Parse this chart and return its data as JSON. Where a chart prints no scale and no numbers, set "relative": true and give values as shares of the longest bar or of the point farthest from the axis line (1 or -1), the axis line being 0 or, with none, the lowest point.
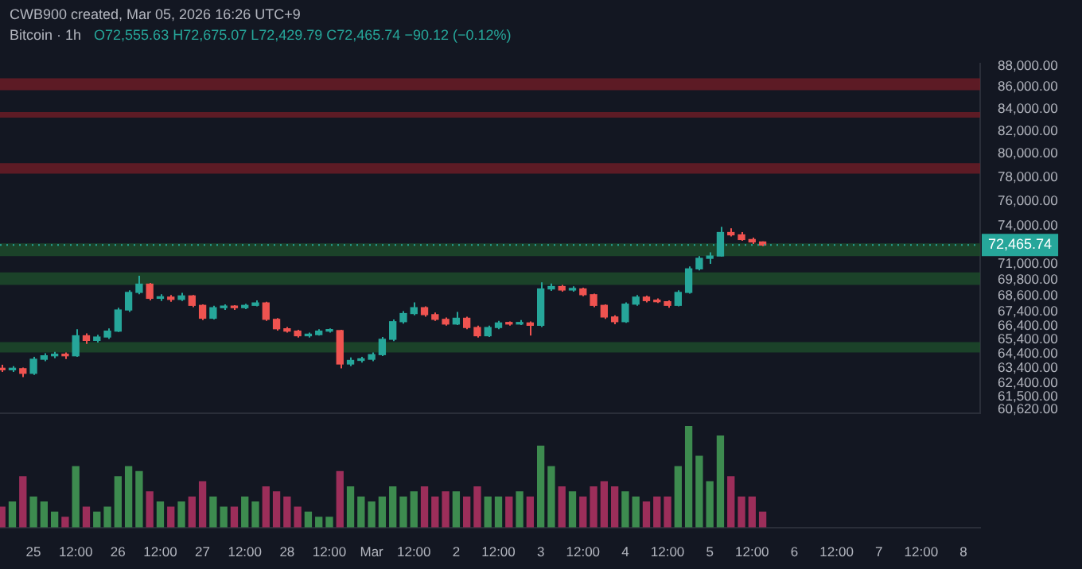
{
  "chart_data": [
    {
      "type": "candlestick",
      "title": "Bitcoin · 1h",
      "annotations": [
        "CWB900 created, Mar 05, 2026 16:26 UTC+9",
        "O72,555.63 H72,675.07 L72,429.79 C72,465.74 −90.12 (−0.12%)"
      ],
      "x": [
        "2026-02-24T15:00",
        "2026-02-24T18:00",
        "2026-02-24T21:00",
        "2026-02-25T00:00",
        "2026-02-25T03:00",
        "2026-02-25T06:00",
        "2026-02-25T09:00",
        "2026-02-25T12:00",
        "2026-02-25T15:00",
        "2026-02-25T18:00",
        "2026-02-25T21:00",
        "2026-02-26T00:00",
        "2026-02-26T03:00",
        "2026-02-26T06:00",
        "2026-02-26T09:00",
        "2026-02-26T12:00",
        "2026-02-26T15:00",
        "2026-02-26T18:00",
        "2026-02-26T21:00",
        "2026-02-27T00:00",
        "2026-02-27T03:00",
        "2026-02-27T06:00",
        "2026-02-27T09:00",
        "2026-02-27T12:00",
        "2026-02-27T15:00",
        "2026-02-27T18:00",
        "2026-02-27T21:00",
        "2026-02-28T00:00",
        "2026-02-28T03:00",
        "2026-02-28T06:00",
        "2026-02-28T09:00",
        "2026-02-28T12:00",
        "2026-02-28T15:00",
        "2026-02-28T18:00",
        "2026-02-28T21:00",
        "2026-03-01T00:00",
        "2026-03-01T03:00",
        "2026-03-01T06:00",
        "2026-03-01T09:00",
        "2026-03-01T12:00",
        "2026-03-01T15:00",
        "2026-03-01T18:00",
        "2026-03-01T21:00",
        "2026-03-02T00:00",
        "2026-03-02T03:00",
        "2026-03-02T06:00",
        "2026-03-02T09:00",
        "2026-03-02T12:00",
        "2026-03-02T15:00",
        "2026-03-02T18:00",
        "2026-03-02T21:00",
        "2026-03-03T00:00",
        "2026-03-03T03:00",
        "2026-03-03T06:00",
        "2026-03-03T09:00",
        "2026-03-03T12:00",
        "2026-03-03T15:00",
        "2026-03-03T18:00",
        "2026-03-03T21:00",
        "2026-03-04T00:00",
        "2026-03-04T03:00",
        "2026-03-04T06:00",
        "2026-03-04T09:00",
        "2026-03-04T12:00",
        "2026-03-04T15:00",
        "2026-03-04T18:00",
        "2026-03-04T21:00",
        "2026-03-05T00:00",
        "2026-03-05T03:00",
        "2026-03-05T06:00",
        "2026-03-05T09:00",
        "2026-03-05T12:00",
        "2026-03-05T15:00"
      ],
      "ohlc": [
        [
          63400,
          63650,
          63150,
          63300
        ],
        [
          63300,
          63550,
          63150,
          63380
        ],
        [
          63380,
          63450,
          62800,
          63060
        ],
        [
          63060,
          64200,
          62950,
          64030
        ],
        [
          64030,
          64450,
          63900,
          64270
        ],
        [
          64270,
          64550,
          64100,
          64350
        ],
        [
          64350,
          64500,
          64050,
          64270
        ],
        [
          64270,
          66150,
          64200,
          65680
        ],
        [
          65680,
          65850,
          65100,
          65350
        ],
        [
          65350,
          65750,
          65200,
          65590
        ],
        [
          65590,
          66200,
          65450,
          66010
        ],
        [
          66010,
          67700,
          65950,
          67540
        ],
        [
          67540,
          69000,
          67400,
          68840
        ],
        [
          68840,
          70100,
          68700,
          69460
        ],
        [
          69460,
          69550,
          68250,
          68400
        ],
        [
          68400,
          68700,
          68200,
          68490
        ],
        [
          68490,
          68650,
          68150,
          68320
        ],
        [
          68320,
          68800,
          68200,
          68580
        ],
        [
          68580,
          68650,
          67750,
          67880
        ],
        [
          67880,
          67950,
          66800,
          66940
        ],
        [
          66940,
          67850,
          66850,
          67710
        ],
        [
          67710,
          67950,
          67550,
          67800
        ],
        [
          67800,
          67900,
          67550,
          67710
        ],
        [
          67710,
          68000,
          67600,
          67880
        ],
        [
          67880,
          68250,
          67800,
          68060
        ],
        [
          68060,
          68150,
          66750,
          66860
        ],
        [
          66860,
          66950,
          66050,
          66180
        ],
        [
          66180,
          66300,
          65900,
          66010
        ],
        [
          66010,
          66100,
          65550,
          65680
        ],
        [
          65680,
          65900,
          65550,
          65760
        ],
        [
          65760,
          66150,
          65700,
          66010
        ],
        [
          66010,
          66200,
          65900,
          66050
        ],
        [
          66050,
          66100,
          63400,
          63700
        ],
        [
          63700,
          64150,
          63550,
          63950
        ],
        [
          63950,
          64200,
          63800,
          64030
        ],
        [
          64030,
          64500,
          63900,
          64350
        ],
        [
          64350,
          65600,
          64250,
          65430
        ],
        [
          65430,
          66850,
          65300,
          66690
        ],
        [
          66690,
          67450,
          66550,
          67280
        ],
        [
          67280,
          68100,
          67150,
          67710
        ],
        [
          67710,
          67800,
          67050,
          67200
        ],
        [
          67200,
          67350,
          66750,
          66860
        ],
        [
          66860,
          67000,
          66400,
          66520
        ],
        [
          66520,
          67400,
          66450,
          66940
        ],
        [
          66940,
          67050,
          66150,
          66270
        ],
        [
          66270,
          66400,
          65550,
          65680
        ],
        [
          65680,
          66400,
          65600,
          66270
        ],
        [
          66270,
          66750,
          66150,
          66600
        ],
        [
          66600,
          66700,
          66400,
          66520
        ],
        [
          66520,
          66800,
          66450,
          66600
        ],
        [
          66600,
          66700,
          65700,
          66430
        ],
        [
          66430,
          69600,
          66300,
          69100
        ],
        [
          69100,
          69500,
          68950,
          69280
        ],
        [
          69280,
          69400,
          68900,
          69020
        ],
        [
          69020,
          69300,
          68900,
          69100
        ],
        [
          69100,
          69200,
          68550,
          68670
        ],
        [
          68670,
          68750,
          67750,
          67880
        ],
        [
          67880,
          67950,
          66900,
          67030
        ],
        [
          67030,
          67150,
          66500,
          66690
        ],
        [
          66690,
          68100,
          66600,
          67970
        ],
        [
          67970,
          68650,
          67850,
          68490
        ],
        [
          68490,
          68600,
          68100,
          68230
        ],
        [
          68230,
          68400,
          68050,
          68150
        ],
        [
          68150,
          68250,
          67700,
          67880
        ],
        [
          67880,
          69000,
          67800,
          68840
        ],
        [
          68840,
          70800,
          68750,
          70620
        ],
        [
          70620,
          71600,
          70500,
          71430
        ],
        [
          71430,
          71900,
          71000,
          71610
        ],
        [
          71610,
          73900,
          71550,
          73460
        ],
        [
          73460,
          73800,
          73150,
          73270
        ],
        [
          73270,
          73500,
          72800,
          72900
        ],
        [
          72900,
          73050,
          72550,
          72710
        ],
        [
          72710,
          72750,
          72380,
          72465.74
        ]
      ],
      "colors": [
        "#ef5350",
        "#26a69a",
        "#ef5350",
        "#26a69a",
        "#26a69a",
        "#26a69a",
        "#ef5350",
        "#26a69a",
        "#ef5350",
        "#26a69a",
        "#26a69a",
        "#26a69a",
        "#26a69a",
        "#26a69a",
        "#ef5350",
        "#26a69a",
        "#ef5350",
        "#26a69a",
        "#ef5350",
        "#ef5350",
        "#26a69a",
        "#26a69a",
        "#ef5350",
        "#26a69a",
        "#26a69a",
        "#ef5350",
        "#ef5350",
        "#ef5350",
        "#ef5350",
        "#26a69a",
        "#26a69a",
        "#26a69a",
        "#ef5350",
        "#26a69a",
        "#26a69a",
        "#26a69a",
        "#26a69a",
        "#26a69a",
        "#26a69a",
        "#26a69a",
        "#ef5350",
        "#ef5350",
        "#ef5350",
        "#26a69a",
        "#ef5350",
        "#ef5350",
        "#26a69a",
        "#26a69a",
        "#ef5350",
        "#26a69a",
        "#ef5350",
        "#26a69a",
        "#26a69a",
        "#ef5350",
        "#26a69a",
        "#ef5350",
        "#ef5350",
        "#ef5350",
        "#ef5350",
        "#26a69a",
        "#26a69a",
        "#ef5350",
        "#ef5350",
        "#ef5350",
        "#26a69a",
        "#26a69a",
        "#26a69a",
        "#26a69a",
        "#26a69a",
        "#ef5350",
        "#ef5350",
        "#ef5350",
        "#ef5350"
      ],
      "log": "y",
      "xlim": [
        "2026-02-24T14:30",
        "2026-03-08T04:45"
      ],
      "ylim": [
        60400,
        88200
      ],
      "yticks": [
        {
          "value": 88000,
          "label": "88,000.00"
        },
        {
          "value": 86000,
          "label": "86,000.00"
        },
        {
          "value": 84000,
          "label": "84,000.00"
        },
        {
          "value": 82000,
          "label": "82,000.00"
        },
        {
          "value": 80000,
          "label": "80,000.00"
        },
        {
          "value": 78000,
          "label": "78,000.00"
        },
        {
          "value": 76000,
          "label": "76,000.00"
        },
        {
          "value": 74000,
          "label": "74,000.00"
        },
        {
          "value": 71000,
          "label": "71,000.00"
        },
        {
          "value": 69800,
          "label": "69,800.00"
        },
        {
          "value": 68600,
          "label": "68,600.00"
        },
        {
          "value": 67400,
          "label": "67,400.00"
        },
        {
          "value": 66400,
          "label": "66,400.00"
        },
        {
          "value": 65400,
          "label": "65,400.00"
        },
        {
          "value": 64400,
          "label": "64,400.00"
        },
        {
          "value": 63400,
          "label": "63,400.00"
        },
        {
          "value": 62400,
          "label": "62,400.00"
        },
        {
          "value": 61500,
          "label": "61,500.00"
        },
        {
          "value": 60620,
          "label": "60,620.00"
        }
      ],
      "tick_labels": "y",
      "ref_lines": [
        {
          "axis": "y",
          "value": 72465.74,
          "label": "72,465.74",
          "color": "#26a69a",
          "line_style": "dotted"
        }
      ],
      "bands": [
        {
          "axis": "y",
          "from": 85700,
          "to": 86830,
          "color": "#6b1c26"
        },
        {
          "axis": "y",
          "from": 83200,
          "to": 83700,
          "color": "#6b1c26"
        },
        {
          "axis": "y",
          "from": 78300,
          "to": 79200,
          "color": "#6b1c26"
        },
        {
          "axis": "y",
          "from": 71600,
          "to": 72600,
          "color": "#1d4a2a"
        },
        {
          "axis": "y",
          "from": 69400,
          "to": 70350,
          "color": "#1d4a2a"
        },
        {
          "axis": "y",
          "from": 64500,
          "to": 65230,
          "color": "#1d4a2a"
        }
      ]
    },
    {
      "type": "bar",
      "relative": true,
      "x": [
        "2026-02-24T15:00",
        "2026-02-24T18:00",
        "2026-02-24T21:00",
        "2026-02-25T00:00",
        "2026-02-25T03:00",
        "2026-02-25T06:00",
        "2026-02-25T09:00",
        "2026-02-25T12:00",
        "2026-02-25T15:00",
        "2026-02-25T18:00",
        "2026-02-25T21:00",
        "2026-02-26T00:00",
        "2026-02-26T03:00",
        "2026-02-26T06:00",
        "2026-02-26T09:00",
        "2026-02-26T12:00",
        "2026-02-26T15:00",
        "2026-02-26T18:00",
        "2026-02-26T21:00",
        "2026-02-27T00:00",
        "2026-02-27T03:00",
        "2026-02-27T06:00",
        "2026-02-27T09:00",
        "2026-02-27T12:00",
        "2026-02-27T15:00",
        "2026-02-27T18:00",
        "2026-02-27T21:00",
        "2026-02-28T00:00",
        "2026-02-28T03:00",
        "2026-02-28T06:00",
        "2026-02-28T09:00",
        "2026-02-28T12:00",
        "2026-02-28T15:00",
        "2026-02-28T18:00",
        "2026-02-28T21:00",
        "2026-03-01T00:00",
        "2026-03-01T03:00",
        "2026-03-01T06:00",
        "2026-03-01T09:00",
        "2026-03-01T12:00",
        "2026-03-01T15:00",
        "2026-03-01T18:00",
        "2026-03-01T21:00",
        "2026-03-02T00:00",
        "2026-03-02T03:00",
        "2026-03-02T06:00",
        "2026-03-02T09:00",
        "2026-03-02T12:00",
        "2026-03-02T15:00",
        "2026-03-02T18:00",
        "2026-03-02T21:00",
        "2026-03-03T00:00",
        "2026-03-03T03:00",
        "2026-03-03T06:00",
        "2026-03-03T09:00",
        "2026-03-03T12:00",
        "2026-03-03T15:00",
        "2026-03-03T18:00",
        "2026-03-03T21:00",
        "2026-03-04T00:00",
        "2026-03-04T03:00",
        "2026-03-04T06:00",
        "2026-03-04T09:00",
        "2026-03-04T12:00",
        "2026-03-04T15:00",
        "2026-03-04T18:00",
        "2026-03-04T21:00",
        "2026-03-05T00:00",
        "2026-03-05T03:00",
        "2026-03-05T06:00",
        "2026-03-05T09:00",
        "2026-03-05T12:00",
        "2026-03-05T15:00"
      ],
      "values": [
        0.2,
        0.25,
        0.5,
        0.3,
        0.25,
        0.15,
        0.1,
        0.6,
        0.2,
        0.15,
        0.2,
        0.5,
        0.6,
        0.55,
        0.35,
        0.25,
        0.2,
        0.25,
        0.3,
        0.45,
        0.3,
        0.2,
        0.2,
        0.3,
        0.25,
        0.4,
        0.35,
        0.3,
        0.2,
        0.15,
        0.1,
        0.1,
        0.55,
        0.4,
        0.3,
        0.25,
        0.3,
        0.4,
        0.3,
        0.35,
        0.4,
        0.3,
        0.35,
        0.35,
        0.3,
        0.4,
        0.3,
        0.3,
        0.3,
        0.35,
        0.3,
        0.8,
        0.6,
        0.4,
        0.35,
        0.3,
        0.4,
        0.45,
        0.4,
        0.35,
        0.3,
        0.25,
        0.3,
        0.3,
        0.6,
        1,
        0.7,
        0.45,
        0.9,
        0.5,
        0.3,
        0.3,
        0.15
      ],
      "colors": [
        "#9c2e5a",
        "#3d8b4f",
        "#9c2e5a",
        "#3d8b4f",
        "#3d8b4f",
        "#3d8b4f",
        "#9c2e5a",
        "#3d8b4f",
        "#9c2e5a",
        "#3d8b4f",
        "#3d8b4f",
        "#3d8b4f",
        "#3d8b4f",
        "#3d8b4f",
        "#9c2e5a",
        "#3d8b4f",
        "#9c2e5a",
        "#3d8b4f",
        "#9c2e5a",
        "#9c2e5a",
        "#3d8b4f",
        "#3d8b4f",
        "#9c2e5a",
        "#3d8b4f",
        "#3d8b4f",
        "#9c2e5a",
        "#9c2e5a",
        "#9c2e5a",
        "#9c2e5a",
        "#3d8b4f",
        "#3d8b4f",
        "#3d8b4f",
        "#9c2e5a",
        "#3d8b4f",
        "#3d8b4f",
        "#3d8b4f",
        "#3d8b4f",
        "#3d8b4f",
        "#3d8b4f",
        "#3d8b4f",
        "#9c2e5a",
        "#9c2e5a",
        "#9c2e5a",
        "#3d8b4f",
        "#9c2e5a",
        "#9c2e5a",
        "#3d8b4f",
        "#3d8b4f",
        "#9c2e5a",
        "#3d8b4f",
        "#9c2e5a",
        "#3d8b4f",
        "#3d8b4f",
        "#9c2e5a",
        "#3d8b4f",
        "#9c2e5a",
        "#9c2e5a",
        "#9c2e5a",
        "#9c2e5a",
        "#3d8b4f",
        "#3d8b4f",
        "#9c2e5a",
        "#9c2e5a",
        "#9c2e5a",
        "#3d8b4f",
        "#3d8b4f",
        "#3d8b4f",
        "#3d8b4f",
        "#3d8b4f",
        "#9c2e5a",
        "#9c2e5a",
        "#9c2e5a",
        "#9c2e5a"
      ],
      "xlim": [
        "2026-02-24T14:30",
        "2026-03-08T04:45"
      ],
      "xticks": [
        {
          "value": "2026-02-25",
          "label": "25"
        },
        {
          "value": "2026-02-25T12:00",
          "label": "12:00"
        },
        {
          "value": "2026-02-26",
          "label": "26"
        },
        {
          "value": "2026-02-26T12:00",
          "label": "12:00"
        },
        {
          "value": "2026-02-27",
          "label": "27"
        },
        {
          "value": "2026-02-27T12:00",
          "label": "12:00"
        },
        {
          "value": "2026-02-28",
          "label": "28"
        },
        {
          "value": "2026-02-28T12:00",
          "label": "12:00"
        },
        {
          "value": "2026-03-01",
          "label": "Mar"
        },
        {
          "value": "2026-03-01T12:00",
          "label": "12:00"
        },
        {
          "value": "2026-03-02",
          "label": "2"
        },
        {
          "value": "2026-03-02T12:00",
          "label": "12:00"
        },
        {
          "value": "2026-03-03",
          "label": "3"
        },
        {
          "value": "2026-03-03T12:00",
          "label": "12:00"
        },
        {
          "value": "2026-03-04",
          "label": "4"
        },
        {
          "value": "2026-03-04T12:00",
          "label": "12:00"
        },
        {
          "value": "2026-03-05",
          "label": "5"
        },
        {
          "value": "2026-03-05T12:00",
          "label": "12:00"
        },
        {
          "value": "2026-03-06",
          "label": "6"
        },
        {
          "value": "2026-03-06T12:00",
          "label": "12:00"
        },
        {
          "value": "2026-03-07",
          "label": "7"
        },
        {
          "value": "2026-03-07T12:00",
          "label": "12:00"
        },
        {
          "value": "2026-03-08",
          "label": "8"
        }
      ],
      "tick_labels": "x"
    }
  ]
}
